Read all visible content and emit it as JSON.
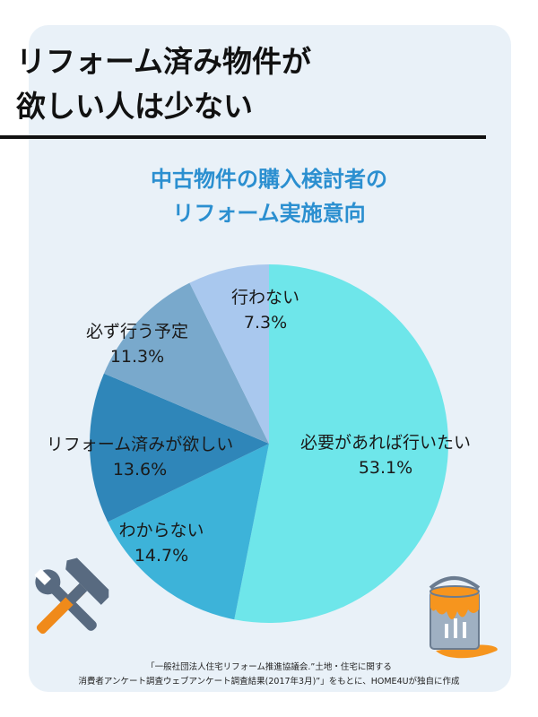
{
  "headline": "リフォーム済み物件が\n欲しい人は少ない",
  "chart_data": {
    "type": "pie",
    "title": "中古物件の購入検討者の\nリフォーム実施意向",
    "slices": [
      {
        "label": "必要があれば行いたい",
        "value": 53.1,
        "value_label": "53.1%",
        "color": "#6ee6ea"
      },
      {
        "label": "わからない",
        "value": 14.7,
        "value_label": "14.7%",
        "color": "#3db3d9"
      },
      {
        "label": "リフォーム済みが欲しい",
        "value": 13.6,
        "value_label": "13.6%",
        "color": "#2f86b9"
      },
      {
        "label": "必ず行う予定",
        "value": 11.3,
        "value_label": "11.3%",
        "color": "#79a9cc"
      },
      {
        "label": "行わない",
        "value": 7.3,
        "value_label": "7.3%",
        "color": "#a9c8ee"
      }
    ],
    "start": "12 o'clock",
    "direction": "clockwise"
  },
  "source_note": "「一般社団法人住宅リフォーム推進協議会.”土地・住宅に関する\n消費者アンケート調査ウェブアンケート調査結果(2017年3月)”」をもとに、HOME4Uが独自に作成",
  "colors": {
    "card_bg": "#e9f1f8",
    "title_accent": "#2b8fd0",
    "tool_icon": "#586a80",
    "tool_handle": "#f08a1a",
    "paint": "#f6951e"
  },
  "icons": [
    "hammer-wrench-icon",
    "paint-can-icon"
  ]
}
